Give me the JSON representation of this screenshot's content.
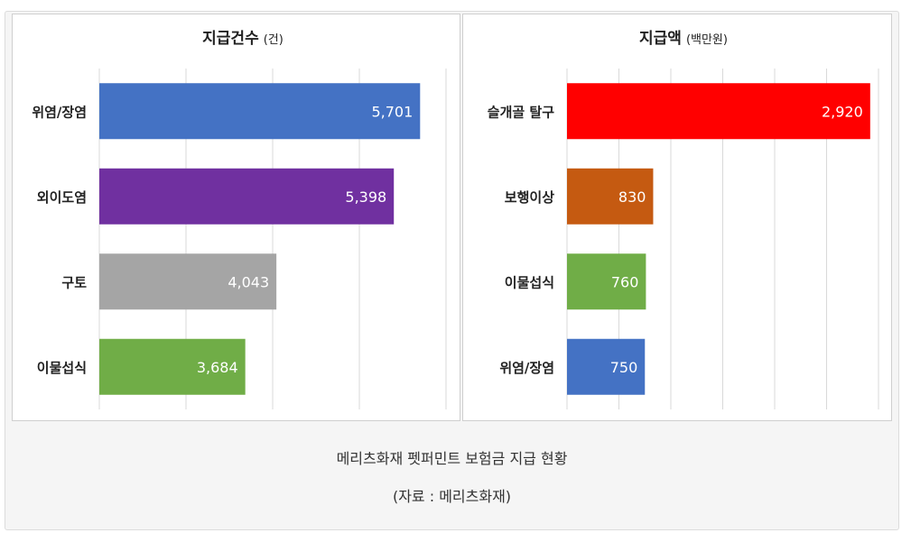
{
  "caption": {
    "title": "메리츠화재 펫퍼민트 보험금 지급 현황",
    "source": "(자료 : 메리츠화재)"
  },
  "chart_data": [
    {
      "type": "bar",
      "orientation": "horizontal",
      "title": "지급건수",
      "unit": "(건)",
      "categories": [
        "위염/장염",
        "외이도염",
        "구토",
        "이물섭식"
      ],
      "values": [
        5701,
        5398,
        4043,
        3684
      ],
      "value_labels": [
        "5,701",
        "5,398",
        "4,043",
        "3,684"
      ],
      "colors": [
        "#4472c4",
        "#7030a0",
        "#a5a5a5",
        "#70ad47"
      ],
      "xlim": [
        2000,
        6000
      ],
      "grid": true
    },
    {
      "type": "bar",
      "orientation": "horizontal",
      "title": "지급액",
      "unit": "(백만원)",
      "categories": [
        "슬개골 탈구",
        "보행이상",
        "이물섭식",
        "위염/장염"
      ],
      "values": [
        2920,
        830,
        760,
        750
      ],
      "value_labels": [
        "2,920",
        "830",
        "760",
        "750"
      ],
      "colors": [
        "#ff0000",
        "#c55a11",
        "#70ad47",
        "#4472c4"
      ],
      "xlim": [
        0,
        3000
      ],
      "grid": true
    }
  ]
}
